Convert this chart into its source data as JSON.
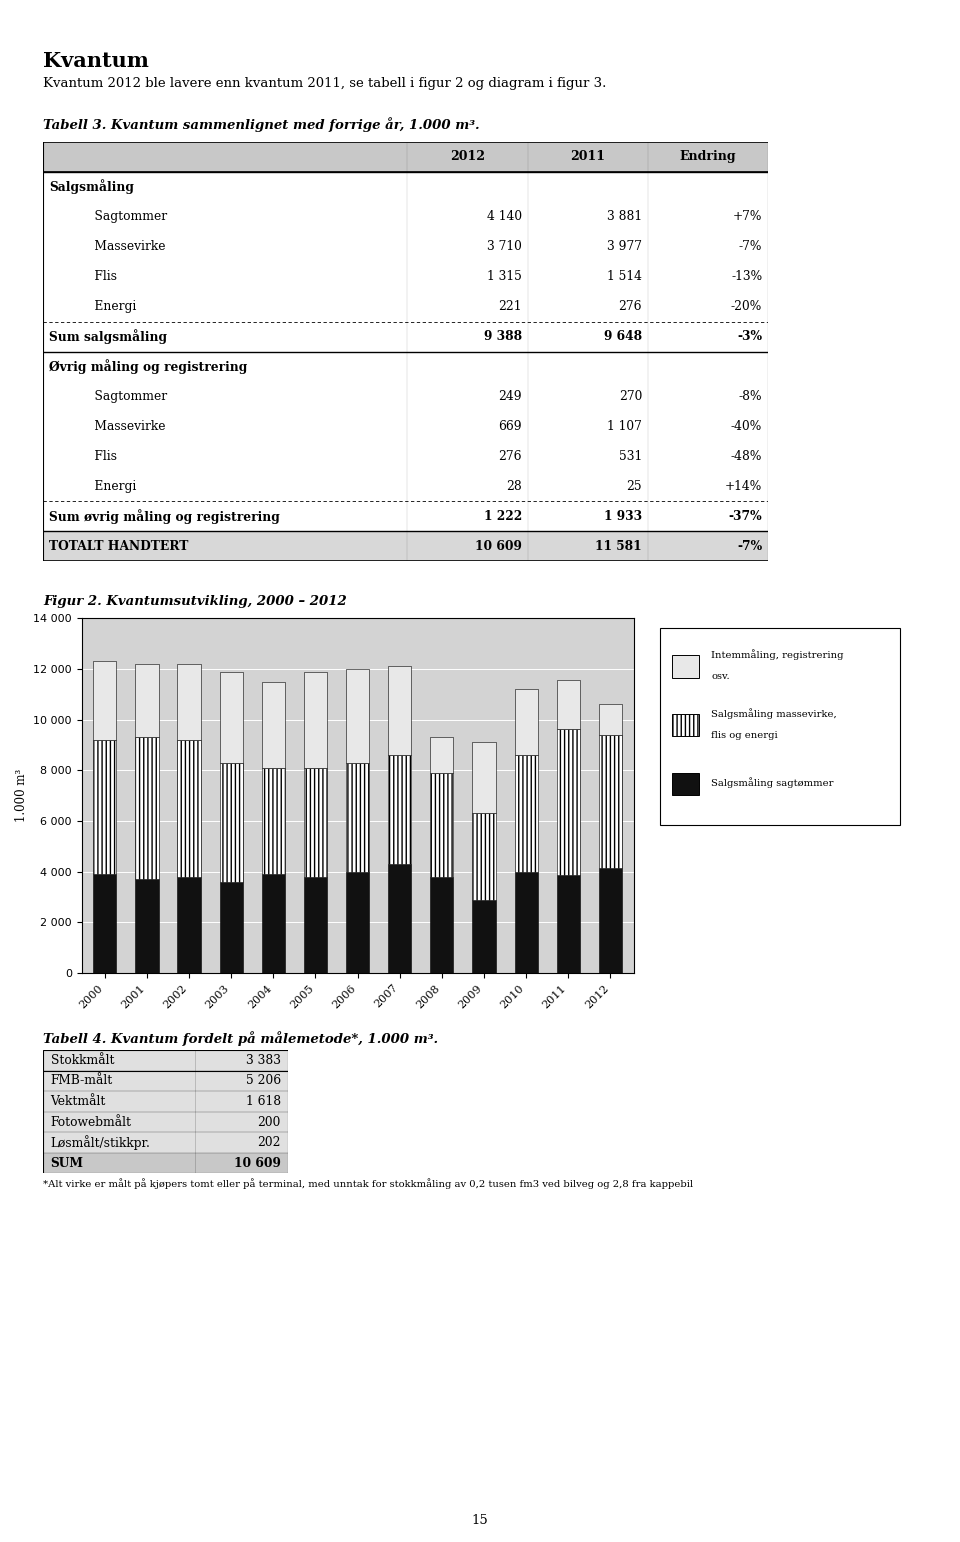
{
  "title_main": "Kvantum",
  "intro_text": "Kvantum 2012 ble lavere enn kvantum 2011, se tabell i figur 2 og diagram i figur 3.",
  "table3_title": "Tabell 3. Kvantum sammenlignet med forrige år, 1.000 m³.",
  "table3_header": [
    "",
    "2012",
    "2011",
    "Endring"
  ],
  "table3_rows": [
    [
      "Salgsmåling",
      "",
      "",
      ""
    ],
    [
      "    Sagtommer",
      "4 140",
      "3 881",
      "+7%"
    ],
    [
      "    Massevirke",
      "3 710",
      "3 977",
      "-7%"
    ],
    [
      "    Flis",
      "1 315",
      "1 514",
      "-13%"
    ],
    [
      "    Energi",
      "221",
      "276",
      "-20%"
    ],
    [
      "Sum salgsmåling",
      "9 388",
      "9 648",
      "-3%"
    ],
    [
      "Øvrig måling og registrering",
      "",
      "",
      ""
    ],
    [
      "    Sagtommer",
      "249",
      "270",
      "-8%"
    ],
    [
      "    Massevirke",
      "669",
      "1 107",
      "-40%"
    ],
    [
      "    Flis",
      "276",
      "531",
      "-48%"
    ],
    [
      "    Energi",
      "28",
      "25",
      "+14%"
    ],
    [
      "Sum øvrig måling og registrering",
      "1 222",
      "1 933",
      "-37%"
    ],
    [
      "TOTALT HANDTERT",
      "10 609",
      "11 581",
      "-7%"
    ]
  ],
  "fig2_title": "Figur 2. Kvantumsutvikling, 2000 – 2012",
  "years": [
    2000,
    2001,
    2002,
    2003,
    2004,
    2005,
    2006,
    2007,
    2008,
    2009,
    2010,
    2011,
    2012
  ],
  "sagtommer": [
    3900,
    3700,
    3800,
    3600,
    3900,
    3800,
    4000,
    4300,
    3800,
    2900,
    4000,
    3881,
    4140
  ],
  "massevirke_flis_energi": [
    5300,
    5600,
    5400,
    4700,
    4200,
    4300,
    4300,
    4300,
    4100,
    3400,
    4600,
    5767,
    5246
  ],
  "intern_registrering": [
    3100,
    2900,
    3000,
    3600,
    3400,
    3800,
    3700,
    3500,
    1400,
    2800,
    2600,
    1933,
    1222
  ],
  "ylabel": "1.000 m³",
  "ylim": [
    0,
    14000
  ],
  "yticks": [
    0,
    2000,
    4000,
    6000,
    8000,
    10000,
    12000,
    14000
  ],
  "legend_labels": [
    "Intemmåling, registrering\nosv.",
    "Salgsmåling massevirke,\nflis og energi",
    "Salgsmåling sagtømmer"
  ],
  "table4_title": "Tabell 4. Kvantum fordelt på målemetode*, 1.000 m³.",
  "table4_rows": [
    [
      "Stokkmålt",
      "3 383"
    ],
    [
      "FMB-målt",
      "5 206"
    ],
    [
      "Vektmålt",
      "1 618"
    ],
    [
      "Fotowebmålt",
      "200"
    ],
    [
      "Løsmålt/stikkpr.",
      "202"
    ],
    [
      "SUM",
      "10 609"
    ]
  ],
  "footnote": "*Alt virke er målt på kjøpers tomt eller på terminal, med unntak for stokkmåling av 0,2 tusen fm3 ved bilveg og 2,8 fra kappebil",
  "page_number": "15",
  "bg_color": "#d3d3d3"
}
